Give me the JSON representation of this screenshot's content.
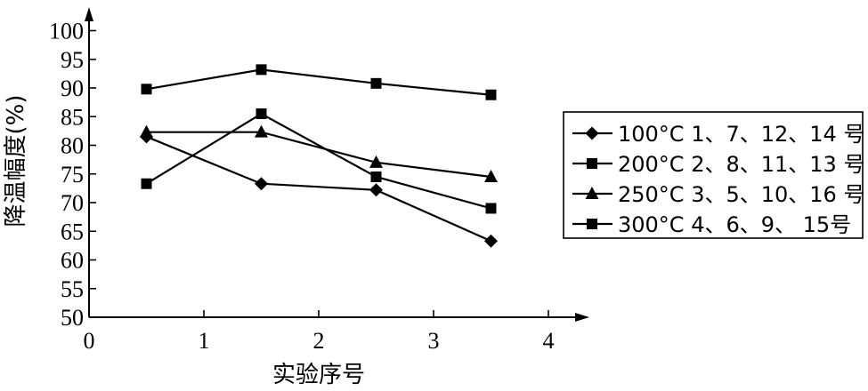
{
  "chart_data": {
    "type": "line",
    "xlabel": "实验序号",
    "ylabel": "降温幅度(%)",
    "xlim": [
      0,
      4
    ],
    "ylim": [
      50,
      100
    ],
    "xticks": [
      "0",
      "1",
      "2",
      "3",
      "4"
    ],
    "yticks": [
      "50",
      "55",
      "60",
      "65",
      "70",
      "75",
      "80",
      "85",
      "90",
      "95",
      "100"
    ],
    "grid": false,
    "legend_position": "right",
    "x": [
      0.5,
      1.5,
      2.5,
      3.5
    ],
    "series": [
      {
        "name": "100°C 1、7、12、14 号",
        "marker": "diamond",
        "values": [
          81.5,
          73.3,
          72.2,
          63.3
        ]
      },
      {
        "name": "200°C 2、8、11、13 号",
        "marker": "square",
        "values": [
          73.3,
          85.5,
          74.5,
          69.0
        ]
      },
      {
        "name": "250°C 3、5、10、16 号",
        "marker": "triangle",
        "values": [
          82.3,
          82.3,
          77.0,
          74.5
        ]
      },
      {
        "name": "300°C 4、6、9、 15号",
        "marker": "square",
        "values": [
          89.8,
          93.2,
          90.8,
          88.8
        ]
      }
    ]
  }
}
